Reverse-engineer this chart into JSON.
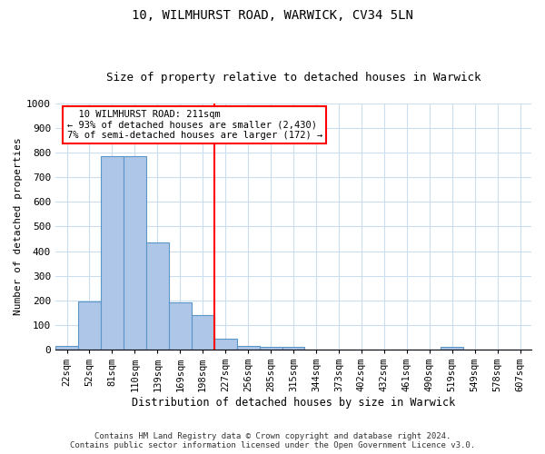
{
  "title1": "10, WILMHURST ROAD, WARWICK, CV34 5LN",
  "title2": "Size of property relative to detached houses in Warwick",
  "xlabel": "Distribution of detached houses by size in Warwick",
  "ylabel": "Number of detached properties",
  "categories": [
    "22sqm",
    "52sqm",
    "81sqm",
    "110sqm",
    "139sqm",
    "169sqm",
    "198sqm",
    "227sqm",
    "256sqm",
    "285sqm",
    "315sqm",
    "344sqm",
    "373sqm",
    "402sqm",
    "432sqm",
    "461sqm",
    "490sqm",
    "519sqm",
    "549sqm",
    "578sqm",
    "607sqm"
  ],
  "values": [
    15,
    195,
    785,
    785,
    435,
    190,
    140,
    45,
    15,
    10,
    10,
    0,
    0,
    0,
    0,
    0,
    0,
    10,
    0,
    0,
    0
  ],
  "bar_color": "#aec6e8",
  "bar_edge_color": "#5a96c8",
  "vline_color": "red",
  "annotation_text": "  10 WILMHURST ROAD: 211sqm\n← 93% of detached houses are smaller (2,430)\n7% of semi-detached houses are larger (172) →",
  "annotation_box_color": "white",
  "annotation_box_edge": "red",
  "ylim": [
    0,
    1000
  ],
  "yticks": [
    0,
    100,
    200,
    300,
    400,
    500,
    600,
    700,
    800,
    900,
    1000
  ],
  "background_color": "white",
  "grid_color": "#ccddee",
  "footer1": "Contains HM Land Registry data © Crown copyright and database right 2024.",
  "footer2": "Contains public sector information licensed under the Open Government Licence v3.0."
}
